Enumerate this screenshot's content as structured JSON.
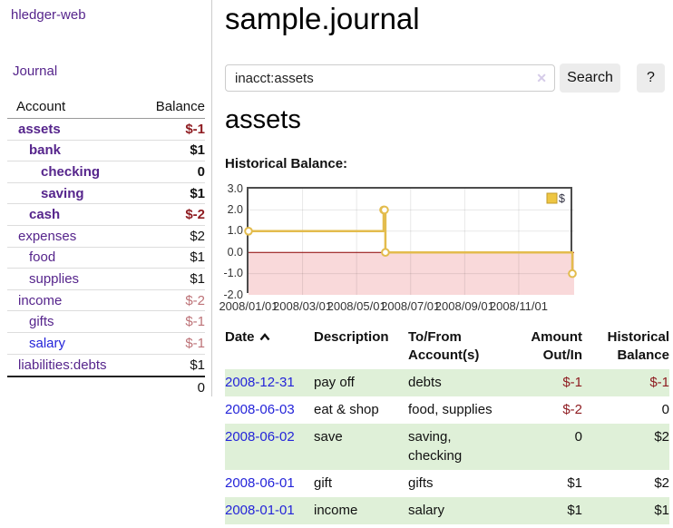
{
  "brand": {
    "label": "hledger-web"
  },
  "sidebar": {
    "journal_label": "Journal",
    "table": {
      "header_account": "Account",
      "header_balance": "Balance",
      "rows": [
        {
          "label": "assets",
          "balance": "$-1",
          "level": 1,
          "bold": true,
          "tone": "neg"
        },
        {
          "label": "bank",
          "balance": "$1",
          "level": 2,
          "bold": true,
          "tone": ""
        },
        {
          "label": "checking",
          "balance": "0",
          "level": 3,
          "bold": true,
          "tone": ""
        },
        {
          "label": "saving",
          "balance": "$1",
          "level": 3,
          "bold": true,
          "tone": ""
        },
        {
          "label": "cash",
          "balance": "$-2",
          "level": 2,
          "bold": true,
          "tone": "neg"
        },
        {
          "label": "expenses",
          "balance": "$2",
          "level": 1,
          "bold": false,
          "tone": ""
        },
        {
          "label": "food",
          "balance": "$1",
          "level": 2,
          "bold": false,
          "tone": ""
        },
        {
          "label": "supplies",
          "balance": "$1",
          "level": 2,
          "bold": false,
          "tone": ""
        },
        {
          "label": "income",
          "balance": "$-2",
          "level": 1,
          "bold": false,
          "tone": "rose"
        },
        {
          "label": "gifts",
          "balance": "$-1",
          "level": 2,
          "bold": false,
          "tone": "rose"
        },
        {
          "label": "salary",
          "balance": "$-1",
          "level": 2,
          "bold": false,
          "tone": "rose",
          "link": "blue"
        },
        {
          "label": "liabilities:debts",
          "balance": "$1",
          "level": 1,
          "bold": false,
          "tone": ""
        }
      ],
      "total": "0"
    }
  },
  "main": {
    "title": "sample.journal"
  },
  "search": {
    "value": "inacct:assets",
    "clear_icon": "✕",
    "button_label": "Search",
    "help_label": "?"
  },
  "account": {
    "heading": "assets",
    "chart_label": "Historical Balance:"
  },
  "chart_data": {
    "type": "line",
    "step": true,
    "title": "Historical Balance:",
    "series": [
      {
        "name": "$",
        "points": [
          [
            "2008-01-01",
            1
          ],
          [
            "2008-06-01",
            2
          ],
          [
            "2008-06-02",
            2
          ],
          [
            "2008-06-03",
            0
          ],
          [
            "2008-12-31",
            -1
          ]
        ]
      }
    ],
    "ylim": [
      -2,
      3
    ],
    "ytick_labels": [
      "3.0",
      "2.0",
      "1.0",
      "0.0",
      "-1.0",
      "-2.0"
    ],
    "yticks": [
      3,
      2,
      1,
      0,
      -1,
      -2
    ],
    "xtick_labels": [
      "2008/01/01",
      "2008/03/01",
      "2008/05/01",
      "2008/07/01",
      "2008/09/01",
      "2008/11/01"
    ],
    "xtick_months": [
      0,
      2,
      4,
      6,
      8,
      10
    ],
    "x_range_months": [
      0,
      12.05
    ],
    "legend": {
      "label": "$",
      "position": "top-right"
    },
    "grid": true,
    "zero_line": true,
    "below_zero_shaded": true
  },
  "register": {
    "headers": {
      "date": "Date",
      "description": "Description",
      "accounts": "To/From Account(s)",
      "amount": "Amount Out/In",
      "balance": "Historical Balance"
    },
    "rows": [
      {
        "date": "2008-12-31",
        "description": "pay off",
        "accounts": "debts",
        "amount": "$-1",
        "amount_neg": true,
        "balance": "$-1",
        "balance_neg": true,
        "shaded": true
      },
      {
        "date": "2008-06-03",
        "description": "eat & shop",
        "accounts": "food, supplies",
        "amount": "$-2",
        "amount_neg": true,
        "balance": "0",
        "balance_neg": false,
        "shaded": false
      },
      {
        "date": "2008-06-02",
        "description": "save",
        "accounts": "saving, checking",
        "amount": "0",
        "amount_neg": false,
        "balance": "$2",
        "balance_neg": false,
        "shaded": true
      },
      {
        "date": "2008-06-01",
        "description": "gift",
        "accounts": "gifts",
        "amount": "$1",
        "amount_neg": false,
        "balance": "$2",
        "balance_neg": false,
        "shaded": false
      },
      {
        "date": "2008-01-01",
        "description": "income",
        "accounts": "salary",
        "amount": "$1",
        "amount_neg": false,
        "balance": "$1",
        "balance_neg": false,
        "shaded": true
      }
    ]
  },
  "colors": {
    "link_purple": "#56258c",
    "link_blue": "#2424d9",
    "negative": "#8f1d22",
    "negative_muted": "#bd7277",
    "row_shade_green": "#dff0d8",
    "chart_line": "#e3bc4d",
    "chart_marker_fill": "#ffffff",
    "below_zero_fill": "#f9d9da",
    "zero_line": "#8b0000",
    "grid_line": "#dcdcdc",
    "button_bg": "#ececec"
  }
}
